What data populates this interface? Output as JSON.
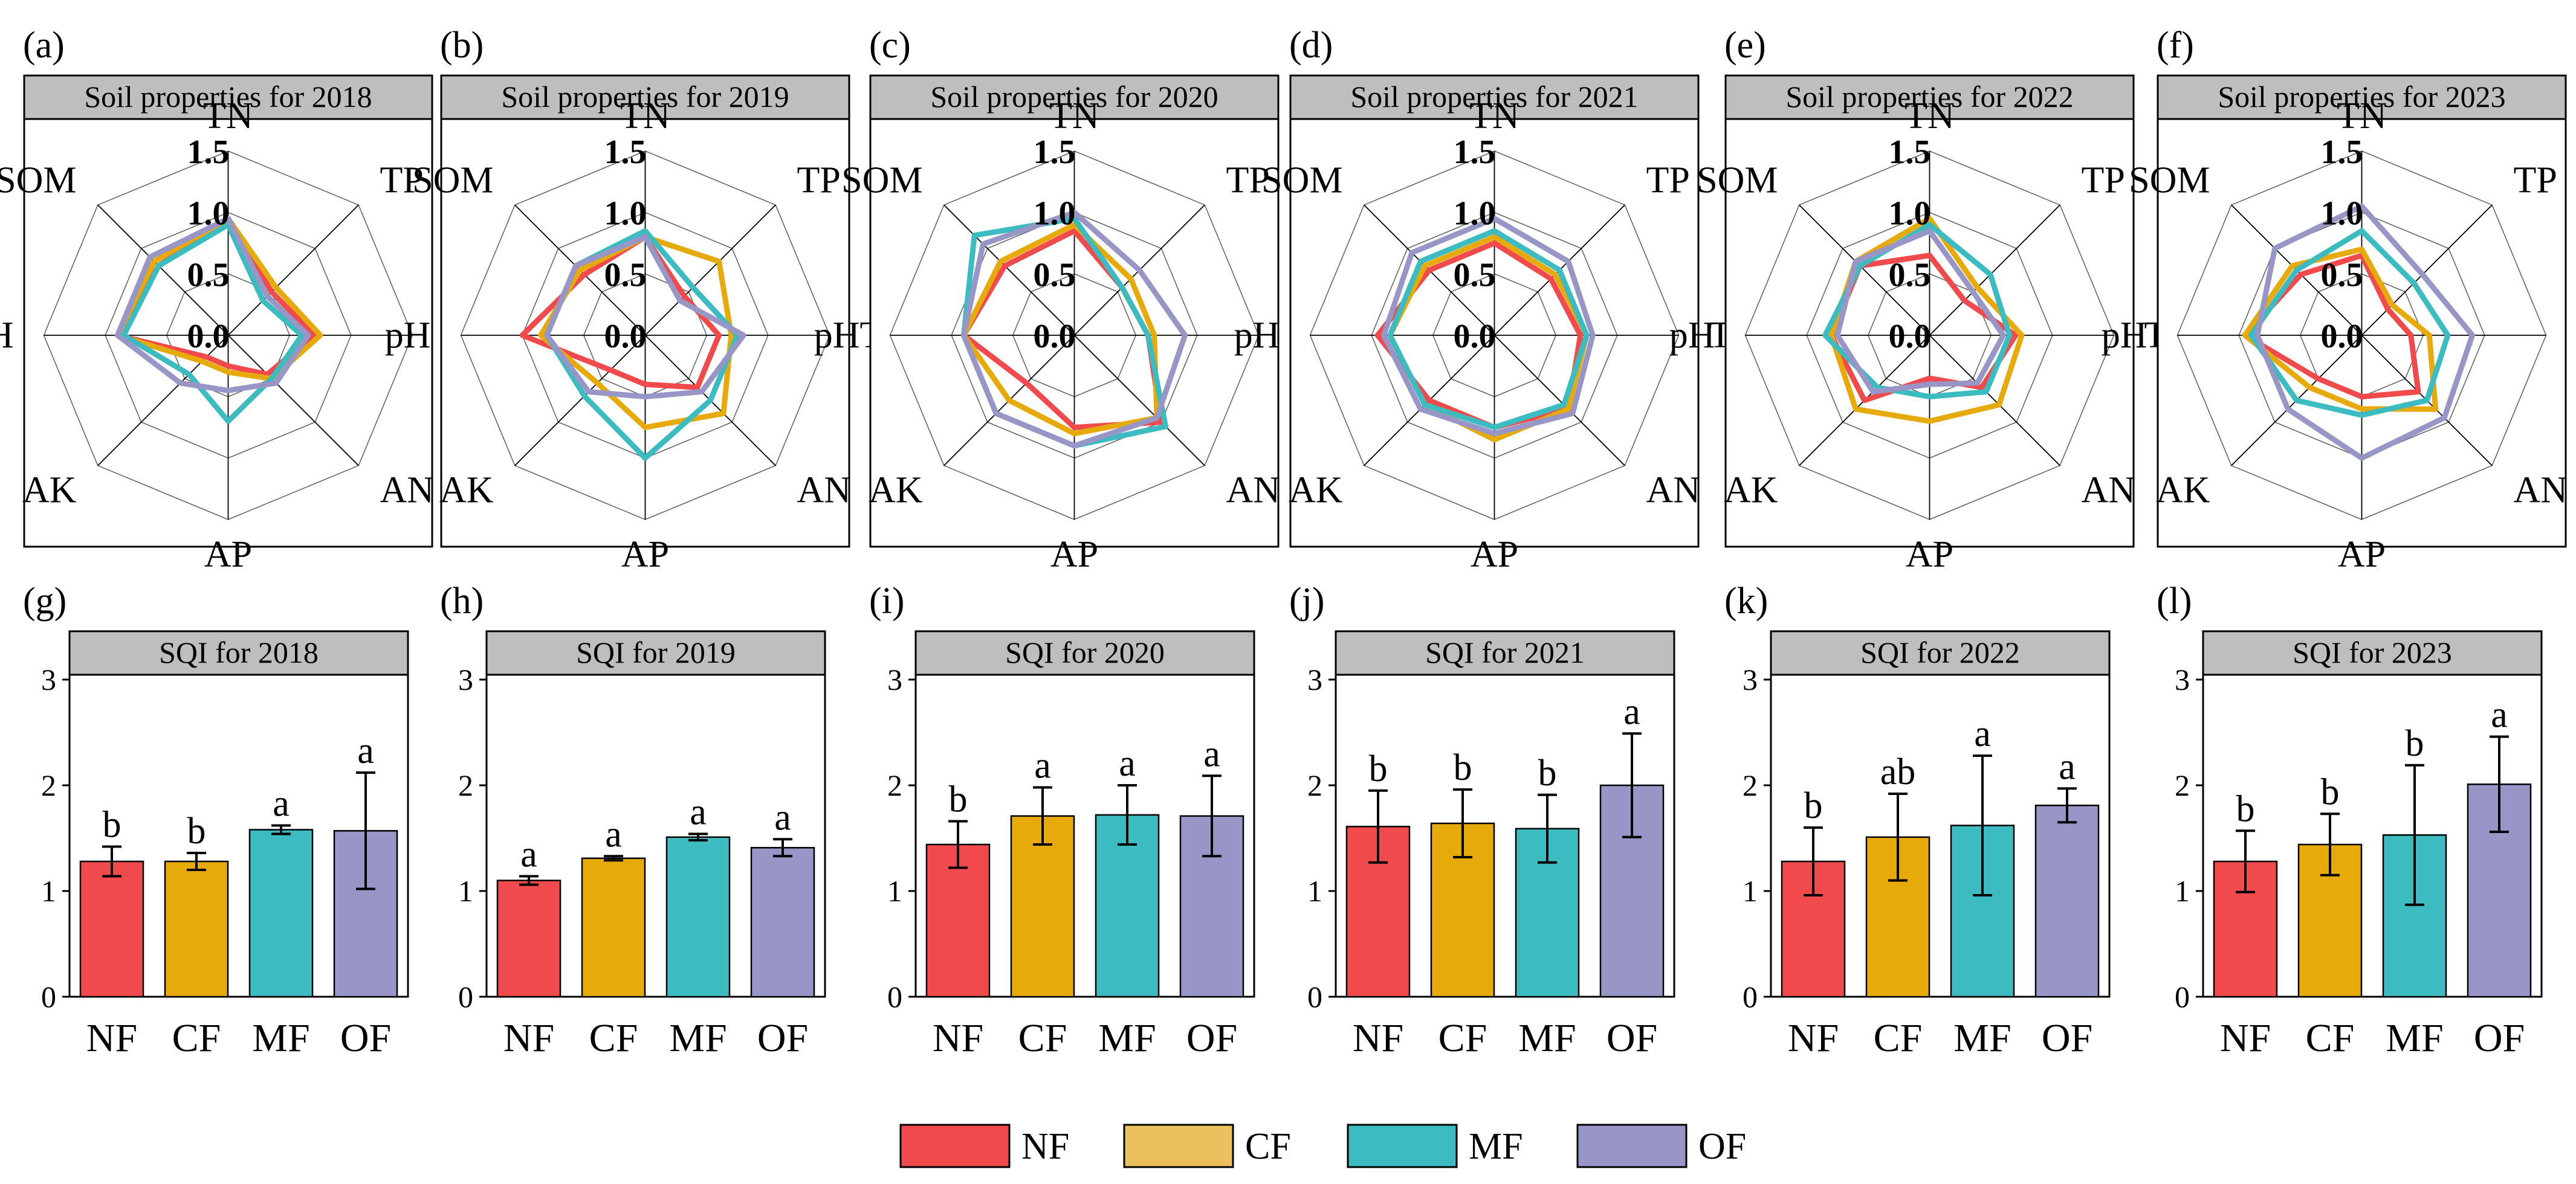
{
  "colors": {
    "NF": "#f04a4d",
    "CF": "#e6aa0a",
    "MF": "#3cbcc0",
    "OF": "#9896c6",
    "header": "#bebebe",
    "axis": "#000000"
  },
  "legend": [
    {
      "key": "NF",
      "label": "NF",
      "color": "#f04a4d"
    },
    {
      "key": "CF",
      "label": "CF",
      "color": "#ebc05e"
    },
    {
      "key": "MF",
      "label": "MF",
      "color": "#3cbcc0"
    },
    {
      "key": "OF",
      "label": "OF",
      "color": "#9896c6"
    }
  ],
  "chart_data": [
    {
      "type": "radar",
      "panel": "(a)",
      "title": "Soil properties for 2018",
      "axes": [
        "TN",
        "TP",
        "TK",
        "AN",
        "AP",
        "AK",
        "pH",
        "SOM"
      ],
      "rlim": [
        0,
        1.5
      ],
      "ticks": [
        "0.0",
        "0.5",
        "1.0",
        "1.5"
      ],
      "series": [
        {
          "name": "NF",
          "values": [
            0.95,
            0.5,
            0.7,
            0.45,
            0.25,
            0.25,
            0.9,
            0.8
          ]
        },
        {
          "name": "CF",
          "values": [
            0.95,
            0.55,
            0.75,
            0.5,
            0.3,
            0.3,
            0.9,
            0.85
          ]
        },
        {
          "name": "MF",
          "values": [
            0.9,
            0.4,
            0.6,
            0.5,
            0.7,
            0.45,
            0.85,
            0.8
          ]
        },
        {
          "name": "OF",
          "values": [
            0.95,
            0.45,
            0.65,
            0.55,
            0.45,
            0.55,
            0.9,
            0.9
          ]
        }
      ]
    },
    {
      "type": "radar",
      "panel": "(b)",
      "title": "Soil properties for 2019",
      "axes": [
        "TN",
        "TP",
        "TK",
        "AN",
        "AP",
        "AK",
        "pH",
        "SOM"
      ],
      "rlim": [
        0,
        1.5
      ],
      "ticks": [
        "0.0",
        "0.5",
        "1.0",
        "1.5"
      ],
      "series": [
        {
          "name": "NF",
          "values": [
            0.8,
            0.45,
            0.6,
            0.6,
            0.4,
            0.4,
            1.0,
            0.7
          ]
        },
        {
          "name": "CF",
          "values": [
            0.8,
            0.85,
            0.7,
            0.9,
            0.75,
            0.55,
            0.85,
            0.75
          ]
        },
        {
          "name": "MF",
          "values": [
            0.85,
            0.55,
            0.75,
            0.75,
            1.0,
            0.7,
            0.8,
            0.8
          ]
        },
        {
          "name": "OF",
          "values": [
            0.8,
            0.4,
            0.8,
            0.65,
            0.5,
            0.65,
            0.8,
            0.8
          ]
        }
      ]
    },
    {
      "type": "radar",
      "panel": "(c)",
      "title": "Soil properties for 2020",
      "axes": [
        "TN",
        "TP",
        "TK",
        "AN",
        "AP",
        "AK",
        "pH",
        "SOM"
      ],
      "rlim": [
        0,
        1.5
      ],
      "ticks": [
        "0.0",
        "0.5",
        "1.0",
        "1.5"
      ],
      "series": [
        {
          "name": "NF",
          "values": [
            0.85,
            0.55,
            0.6,
            1.0,
            0.75,
            0.55,
            0.9,
            0.8
          ]
        },
        {
          "name": "CF",
          "values": [
            0.9,
            0.65,
            0.65,
            0.95,
            0.8,
            0.75,
            0.9,
            0.85
          ]
        },
        {
          "name": "MF",
          "values": [
            0.95,
            0.55,
            0.6,
            1.05,
            0.9,
            0.9,
            0.9,
            1.15
          ]
        },
        {
          "name": "OF",
          "values": [
            1.0,
            0.75,
            0.9,
            0.95,
            0.9,
            0.9,
            0.9,
            1.05
          ]
        }
      ]
    },
    {
      "type": "radar",
      "panel": "(d)",
      "title": "Soil properties for 2021",
      "axes": [
        "TN",
        "TP",
        "TK",
        "AN",
        "AP",
        "AK",
        "pH",
        "SOM"
      ],
      "rlim": [
        0,
        1.5
      ],
      "ticks": [
        "0.0",
        "0.5",
        "1.0",
        "1.5"
      ],
      "series": [
        {
          "name": "NF",
          "values": [
            0.75,
            0.65,
            0.7,
            0.85,
            0.75,
            0.75,
            0.95,
            0.75
          ]
        },
        {
          "name": "CF",
          "values": [
            0.8,
            0.7,
            0.75,
            0.85,
            0.85,
            0.8,
            0.85,
            0.8
          ]
        },
        {
          "name": "MF",
          "values": [
            0.85,
            0.75,
            0.75,
            0.8,
            0.75,
            0.8,
            0.85,
            0.85
          ]
        },
        {
          "name": "OF",
          "values": [
            0.95,
            0.85,
            0.8,
            0.9,
            0.8,
            0.85,
            0.9,
            0.95
          ]
        }
      ]
    },
    {
      "type": "radar",
      "panel": "(e)",
      "title": "Soil properties for 2022",
      "axes": [
        "TN",
        "TP",
        "TK",
        "AN",
        "AP",
        "AK",
        "pH",
        "SOM"
      ],
      "rlim": [
        0,
        1.5
      ],
      "ticks": [
        "0.0",
        "0.5",
        "1.0",
        "1.5"
      ],
      "series": [
        {
          "name": "NF",
          "values": [
            0.65,
            0.4,
            0.7,
            0.6,
            0.35,
            0.75,
            0.8,
            0.8
          ]
        },
        {
          "name": "CF",
          "values": [
            0.95,
            0.55,
            0.75,
            0.8,
            0.7,
            0.85,
            0.8,
            0.85
          ]
        },
        {
          "name": "MF",
          "values": [
            0.9,
            0.7,
            0.65,
            0.65,
            0.5,
            0.6,
            0.85,
            0.8
          ]
        },
        {
          "name": "OF",
          "values": [
            0.85,
            0.5,
            0.6,
            0.55,
            0.4,
            0.65,
            0.75,
            0.85
          ]
        }
      ]
    },
    {
      "type": "radar",
      "panel": "(f)",
      "title": "Soil properties for 2023",
      "axes": [
        "TN",
        "TP",
        "TK",
        "AN",
        "AP",
        "AK",
        "pH",
        "SOM"
      ],
      "rlim": [
        0,
        1.5
      ],
      "ticks": [
        "0.0",
        "0.5",
        "1.0",
        "1.5"
      ],
      "series": [
        {
          "name": "NF",
          "values": [
            0.65,
            0.3,
            0.4,
            0.65,
            0.5,
            0.5,
            0.95,
            0.7
          ]
        },
        {
          "name": "CF",
          "values": [
            0.7,
            0.35,
            0.55,
            0.85,
            0.6,
            0.6,
            0.95,
            0.8
          ]
        },
        {
          "name": "MF",
          "values": [
            0.85,
            0.6,
            0.7,
            0.75,
            0.65,
            0.75,
            0.9,
            0.75
          ]
        },
        {
          "name": "OF",
          "values": [
            1.05,
            0.7,
            0.9,
            0.95,
            1.0,
            0.85,
            0.85,
            1.0
          ]
        }
      ]
    },
    {
      "type": "bar",
      "panel": "(g)",
      "title": "SQI for 2018",
      "categories": [
        "NF",
        "CF",
        "MF",
        "OF"
      ],
      "values": [
        1.28,
        1.28,
        1.58,
        1.57
      ],
      "errors": [
        0.14,
        0.08,
        0.04,
        0.55
      ],
      "letters": [
        "b",
        "b",
        "a",
        "a"
      ],
      "ylim": [
        0,
        3
      ],
      "yticks": [
        "0",
        "1",
        "2",
        "3"
      ]
    },
    {
      "type": "bar",
      "panel": "(h)",
      "title": "SQI for 2019",
      "categories": [
        "NF",
        "CF",
        "MF",
        "OF"
      ],
      "values": [
        1.1,
        1.31,
        1.51,
        1.41
      ],
      "errors": [
        0.04,
        0.02,
        0.03,
        0.08
      ],
      "letters": [
        "a",
        "a",
        "a",
        "a"
      ],
      "ylim": [
        0,
        3
      ],
      "yticks": [
        "0",
        "1",
        "2",
        "3"
      ]
    },
    {
      "type": "bar",
      "panel": "(i)",
      "title": "SQI for 2020",
      "categories": [
        "NF",
        "CF",
        "MF",
        "OF"
      ],
      "values": [
        1.44,
        1.71,
        1.72,
        1.71
      ],
      "errors": [
        0.22,
        0.27,
        0.28,
        0.38
      ],
      "letters": [
        "b",
        "a",
        "a",
        "a"
      ],
      "ylim": [
        0,
        3
      ],
      "yticks": [
        "0",
        "1",
        "2",
        "3"
      ]
    },
    {
      "type": "bar",
      "panel": "(j)",
      "title": "SQI for 2021",
      "categories": [
        "NF",
        "CF",
        "MF",
        "OF"
      ],
      "values": [
        1.61,
        1.64,
        1.59,
        2.0
      ],
      "errors": [
        0.34,
        0.32,
        0.32,
        0.49
      ],
      "letters": [
        "b",
        "b",
        "b",
        "a"
      ],
      "ylim": [
        0,
        3
      ],
      "yticks": [
        "0",
        "1",
        "2",
        "3"
      ]
    },
    {
      "type": "bar",
      "panel": "(k)",
      "title": "SQI for 2022",
      "categories": [
        "NF",
        "CF",
        "MF",
        "OF"
      ],
      "values": [
        1.28,
        1.51,
        1.62,
        1.81
      ],
      "errors": [
        0.32,
        0.41,
        0.66,
        0.16
      ],
      "letters": [
        "b",
        "ab",
        "a",
        "a"
      ],
      "ylim": [
        0,
        3
      ],
      "yticks": [
        "0",
        "1",
        "2",
        "3"
      ]
    },
    {
      "type": "bar",
      "panel": "(l)",
      "title": "SQI for 2023",
      "categories": [
        "NF",
        "CF",
        "MF",
        "OF"
      ],
      "values": [
        1.28,
        1.44,
        1.53,
        2.01
      ],
      "errors": [
        0.29,
        0.29,
        0.66,
        0.45
      ],
      "letters": [
        "b",
        "b",
        "b",
        "a"
      ],
      "ylim": [
        0,
        3
      ],
      "yticks": [
        "0",
        "1",
        "2",
        "3"
      ]
    }
  ]
}
